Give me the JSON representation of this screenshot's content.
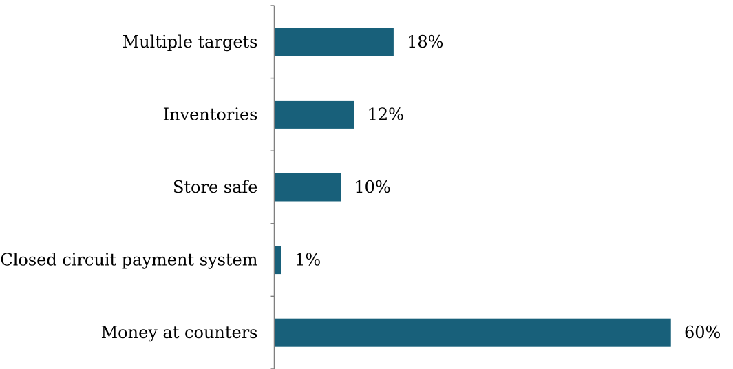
{
  "chart_data": {
    "type": "bar",
    "orientation": "horizontal",
    "categories": [
      "Multiple targets",
      "Inventories",
      "Store safe",
      "Closed circuit payment system",
      "Money at counters"
    ],
    "values": [
      18,
      12,
      10,
      1,
      60
    ],
    "value_labels": [
      "18%",
      "12%",
      "10%",
      "1%",
      "60%"
    ],
    "unit": "%",
    "title": "",
    "xlabel": "",
    "ylabel": "",
    "xlim": [
      0,
      60
    ],
    "grid": false,
    "legend": "none",
    "bar_color": "#18607a",
    "axis_color": "#7f7f7f"
  }
}
